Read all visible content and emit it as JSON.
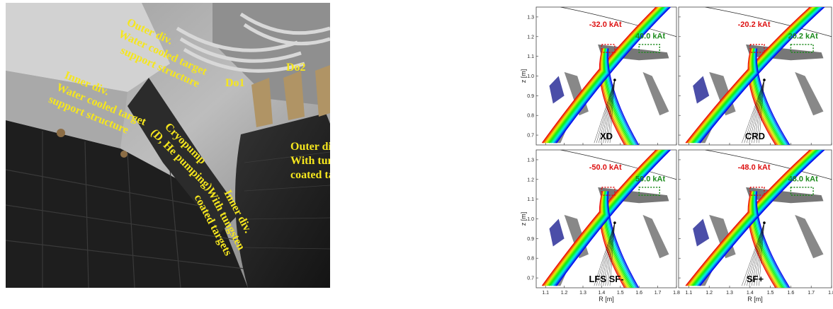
{
  "left_image": {
    "labels": [
      {
        "lines": [
          "Outer div.",
          "Water cooled target",
          "support structure"
        ]
      },
      {
        "lines": [
          "Do1"
        ]
      },
      {
        "lines": [
          "Do2"
        ]
      },
      {
        "lines": [
          "Inner div.",
          "Water cooled target",
          "support structure"
        ]
      },
      {
        "lines": [
          "Cryopump",
          "(D, He pumping)"
        ]
      },
      {
        "lines": [
          "Outer div.",
          "With tungsten",
          "coated targets"
        ]
      },
      {
        "lines": [
          "Inner div.",
          "With tungsten",
          "coated targets"
        ]
      }
    ]
  },
  "axes": {
    "xlabel": "R [m]",
    "ylabel": "z [m]",
    "xlim": [
      1.05,
      1.8
    ],
    "ylim": [
      0.65,
      1.35
    ],
    "xticks": [
      1.1,
      1.2,
      1.3,
      1.4,
      1.5,
      1.6,
      1.7,
      1.8
    ],
    "yticks": [
      0.7,
      0.8,
      0.9,
      {
        "value": 1,
        "label": "1.0"
      },
      1.1,
      1.2,
      1.3
    ]
  },
  "panels": [
    {
      "name": "XD",
      "inner_current": "-32.0 kAt",
      "outer_current": "40.0 kAt"
    },
    {
      "name": "CRD",
      "inner_current": "-20.2 kAt",
      "outer_current": "20.2 kAt"
    },
    {
      "name": "LFS SF-",
      "inner_current": "-50.0 kAt",
      "outer_current": "50.0 kAt"
    },
    {
      "name": "SF+",
      "inner_current": "-48.0 kAt",
      "outer_current": "48.0 kAt"
    }
  ]
}
